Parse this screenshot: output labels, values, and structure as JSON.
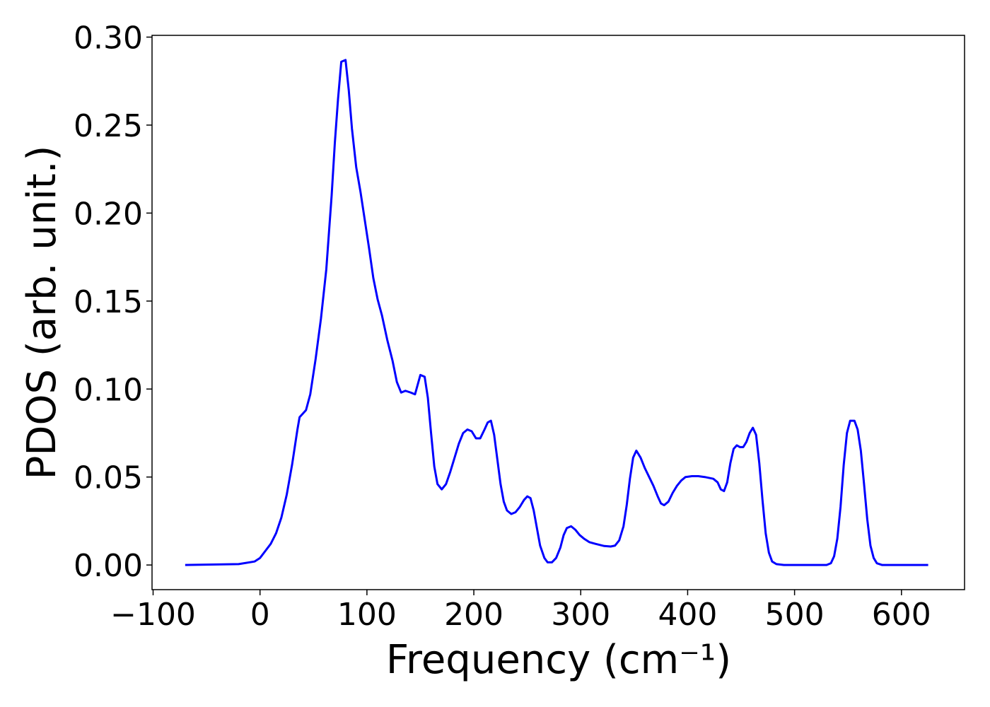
{
  "chart_data": {
    "type": "line",
    "xlabel": "Frequency (cm⁻¹)",
    "ylabel": "PDOS (arb. unit.)",
    "color": "#0000ff",
    "xlim": [
      -101,
      659
    ],
    "ylim": [
      -0.014,
      0.301
    ],
    "xticks": [
      {
        "value": -100,
        "label": "−100"
      },
      0,
      100,
      200,
      300,
      400,
      500,
      600
    ],
    "yticks": [
      {
        "value": 0,
        "label": "0.00"
      },
      {
        "value": 0.05,
        "label": "0.05"
      },
      {
        "value": 0.1,
        "label": "0.10"
      },
      {
        "value": 0.15,
        "label": "0.15"
      },
      {
        "value": 0.2,
        "label": "0.20"
      },
      {
        "value": 0.25,
        "label": "0.25"
      },
      {
        "value": 0.3,
        "label": "0.30"
      }
    ],
    "x": [
      -70,
      -20,
      -5,
      0,
      5,
      10,
      15,
      20,
      25,
      30,
      35,
      37,
      43,
      47,
      52,
      57,
      62,
      67,
      70,
      73,
      76,
      80,
      83,
      86,
      90,
      94,
      98,
      102,
      106,
      110,
      114,
      119,
      124,
      128,
      132,
      136,
      141,
      145,
      150,
      154,
      157,
      160,
      163,
      166,
      170,
      174,
      178,
      182,
      186,
      190,
      194,
      198,
      202,
      206,
      210,
      213,
      216,
      219,
      222,
      225,
      228,
      231,
      235,
      239,
      243,
      247,
      250,
      253,
      256,
      259,
      262,
      266,
      269,
      273,
      277,
      281,
      284,
      287,
      291,
      295,
      299,
      303,
      308,
      314,
      322,
      328,
      332,
      336,
      340,
      343,
      346,
      349,
      352,
      356,
      360,
      364,
      368,
      372,
      375,
      378,
      382,
      386,
      390,
      394,
      398,
      404,
      410,
      416,
      424,
      428,
      431,
      434,
      437,
      440,
      443,
      446,
      449,
      452,
      455,
      458,
      461,
      464,
      467,
      470,
      473,
      476,
      479,
      483,
      490,
      530,
      534,
      537,
      540,
      543,
      546,
      549,
      552,
      556,
      559,
      562,
      565,
      568,
      571,
      574,
      577,
      582,
      625
    ],
    "values": [
      0,
      0.0005,
      0.002,
      0.004,
      0.008,
      0.012,
      0.018,
      0.027,
      0.04,
      0.057,
      0.077,
      0.084,
      0.088,
      0.097,
      0.117,
      0.14,
      0.168,
      0.21,
      0.24,
      0.265,
      0.286,
      0.287,
      0.27,
      0.248,
      0.226,
      0.212,
      0.196,
      0.18,
      0.163,
      0.151,
      0.142,
      0.128,
      0.116,
      0.104,
      0.098,
      0.099,
      0.098,
      0.097,
      0.108,
      0.107,
      0.095,
      0.075,
      0.056,
      0.046,
      0.043,
      0.046,
      0.053,
      0.061,
      0.069,
      0.075,
      0.077,
      0.076,
      0.072,
      0.072,
      0.077,
      0.081,
      0.082,
      0.074,
      0.06,
      0.046,
      0.036,
      0.031,
      0.029,
      0.03,
      0.033,
      0.037,
      0.039,
      0.038,
      0.031,
      0.021,
      0.011,
      0.004,
      0.0015,
      0.0015,
      0.004,
      0.01,
      0.017,
      0.021,
      0.022,
      0.02,
      0.017,
      0.015,
      0.013,
      0.012,
      0.0108,
      0.0105,
      0.011,
      0.014,
      0.022,
      0.034,
      0.049,
      0.061,
      0.065,
      0.061,
      0.055,
      0.05,
      0.045,
      0.039,
      0.035,
      0.034,
      0.036,
      0.041,
      0.045,
      0.048,
      0.05,
      0.0505,
      0.0505,
      0.05,
      0.049,
      0.047,
      0.043,
      0.042,
      0.047,
      0.058,
      0.066,
      0.068,
      0.067,
      0.067,
      0.07,
      0.075,
      0.078,
      0.074,
      0.058,
      0.037,
      0.018,
      0.007,
      0.002,
      0.0005,
      0,
      0,
      0.001,
      0.005,
      0.015,
      0.033,
      0.057,
      0.075,
      0.082,
      0.082,
      0.077,
      0.065,
      0.046,
      0.026,
      0.011,
      0.004,
      0.001,
      0,
      0
    ]
  }
}
